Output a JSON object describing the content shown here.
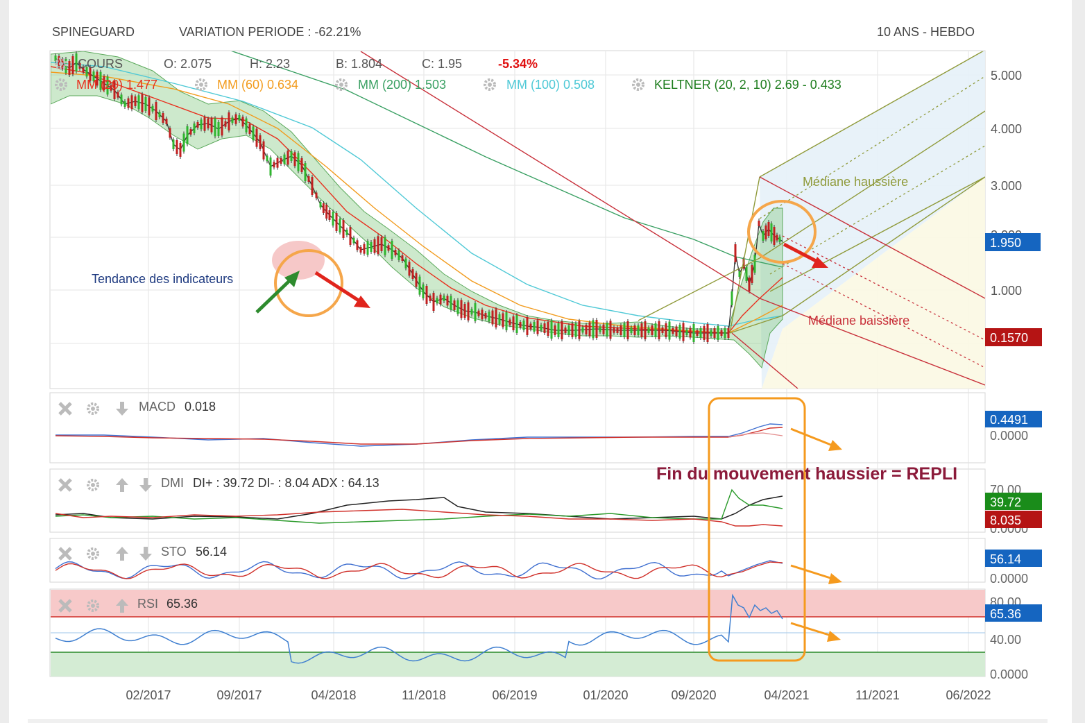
{
  "header": {
    "ticker": "SPINEGUARD",
    "variation": "VARIATION PERIODE : -62.21%",
    "period": "10 ANS - HEBDO"
  },
  "legend": {
    "cours": "COURS",
    "ohlc": [
      {
        "label": "O: 2.075"
      },
      {
        "label": "H: 2.23"
      },
      {
        "label": "B: 1.804"
      },
      {
        "label": "C: 1.95"
      }
    ],
    "change": "-5.34%",
    "indicators": [
      {
        "text": "MM (20) 1.477",
        "color": "#e8301e"
      },
      {
        "text": "MM (60)  0.634",
        "color": "#f29b1d"
      },
      {
        "text": "MM (200)  1.503",
        "color": "#3aa063"
      },
      {
        "text": "MM (100)  0.508",
        "color": "#4fc9d6"
      },
      {
        "text": "KELTNER (20, 2, 10)  2.69 - 0.433",
        "color": "#1e7d1e"
      }
    ]
  },
  "annotations": {
    "indicator_trend": "Tendance des indicateurs",
    "mediane_haussiere": "Médiane haussière",
    "mediane_baissiere": "Médiane baissière",
    "conclusion": "Fin du mouvement haussier = REPLI"
  },
  "price_axis": {
    "ticks": [
      "5.000",
      "4.000",
      "3.000",
      "2.000",
      "1.000"
    ],
    "current": "1.950",
    "level": "0.1570"
  },
  "panels": {
    "macd": {
      "name": "MACD",
      "value": "0.018",
      "ticks": [
        "0.0000"
      ],
      "badge": "0.4491"
    },
    "dmi": {
      "name": "DMI",
      "value": "DI+ : 39.72 DI- : 8.04 ADX : 64.13",
      "ticks": [
        "70.00",
        "0.0000"
      ],
      "badge_plus": "39.72",
      "badge_minus": "8.035"
    },
    "sto": {
      "name": "STO",
      "value": "56.14",
      "ticks": [
        "0.0000"
      ],
      "badge": "56.14"
    },
    "rsi": {
      "name": "RSI",
      "value": "65.36",
      "ticks": [
        "80.00",
        "40.00",
        "0.0000"
      ],
      "badge": "65.36"
    }
  },
  "x_axis": {
    "ticks": [
      "02/2017",
      "09/2017",
      "04/2018",
      "11/2018",
      "06/2019",
      "01/2020",
      "09/2020",
      "04/2021",
      "11/2021",
      "06/2022"
    ]
  },
  "colors": {
    "macd_line": "#3f6fd0",
    "signal_line": "#d0302a",
    "adx": "#222222",
    "di_plus": "#2a9a2a",
    "di_minus": "#d0302a",
    "badge_blue": "#1565c0",
    "badge_green": "#1a8c1a",
    "badge_red": "#b51414",
    "annotation_orange": "#f5a64a",
    "conclusion": "#8b1a3a"
  },
  "chart_data": {
    "type": "line",
    "title": "SPINEGUARD",
    "x": [
      "2016-10",
      "2017-02",
      "2017-09",
      "2018-04",
      "2018-11",
      "2019-06",
      "2020-01",
      "2020-09",
      "2020-11",
      "2021-01",
      "2021-03"
    ],
    "series": [
      {
        "name": "COURS",
        "values": [
          5.1,
          4.8,
          4.2,
          3.0,
          1.8,
          0.9,
          0.3,
          0.17,
          1.2,
          2.5,
          1.95
        ]
      },
      {
        "name": "MM (20)",
        "values": [
          5.0,
          4.7,
          4.0,
          3.2,
          2.0,
          1.0,
          0.35,
          0.2,
          0.4,
          1.2,
          1.477
        ]
      },
      {
        "name": "MM (60)",
        "values": [
          5.1,
          4.9,
          4.5,
          3.7,
          2.4,
          1.2,
          0.4,
          0.22,
          0.3,
          0.5,
          0.634
        ]
      },
      {
        "name": "MM (200)",
        "values": [
          5.6,
          5.3,
          4.9,
          4.4,
          3.7,
          3.0,
          2.4,
          1.8,
          1.7,
          1.6,
          1.503
        ]
      },
      {
        "name": "MM (100)",
        "values": [
          5.3,
          5.1,
          4.8,
          4.2,
          3.0,
          1.8,
          0.8,
          0.4,
          0.42,
          0.47,
          0.508
        ]
      }
    ],
    "ylim": [
      -0.9,
      5.4
    ]
  }
}
